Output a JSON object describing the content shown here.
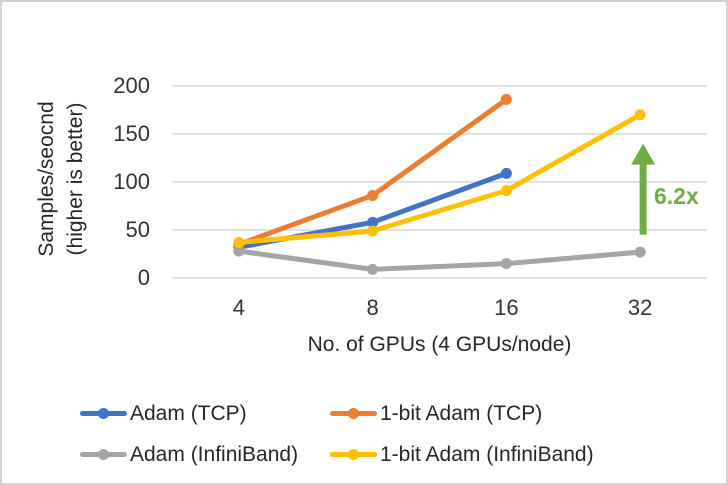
{
  "chart": {
    "y_axis": {
      "title_line1": "Samples/seocnd",
      "title_line2": "(higher is better)",
      "ticks": [
        0,
        50,
        100,
        150,
        200
      ]
    },
    "x_axis": {
      "title": "No. of GPUs (4 GPUs/node)",
      "categories": [
        "4",
        "8",
        "16",
        "32"
      ]
    },
    "annotation": {
      "label": "6.2x",
      "color": "#70AD47",
      "at_category_index": 3,
      "arrow_from_value": 45,
      "arrow_to_value": 140
    },
    "colors": {
      "gridline": "#D9D9D9",
      "text": "#262626",
      "border": "#D2D2D2"
    }
  },
  "chart_data": {
    "type": "line",
    "categories": [
      4,
      8,
      16,
      32
    ],
    "series": [
      {
        "name": "Adam (TCP)",
        "color": "#4472C4",
        "values": [
          32,
          58,
          109,
          null
        ]
      },
      {
        "name": "1-bit Adam (TCP)",
        "color": "#ED7D31",
        "values": [
          35,
          86,
          186,
          null
        ]
      },
      {
        "name": "Adam (InfiniBand)",
        "color": "#A5A5A5",
        "values": [
          28,
          9,
          15,
          27
        ]
      },
      {
        "name": "1-bit Adam (InfiniBand)",
        "color": "#FFC000",
        "values": [
          37,
          49,
          91,
          170
        ]
      }
    ],
    "title": "",
    "xlabel": "No. of GPUs (4 GPUs/node)",
    "ylabel": "Samples/seocnd (higher is better)",
    "ylim": [
      0,
      200
    ],
    "grid": true,
    "legend_position": "bottom"
  },
  "legend": {
    "items": [
      {
        "label": "Adam (TCP)",
        "color": "#4472C4"
      },
      {
        "label": "1-bit Adam (TCP)",
        "color": "#ED7D31"
      },
      {
        "label": "Adam (InfiniBand)",
        "color": "#A5A5A5"
      },
      {
        "label": "1-bit Adam (InfiniBand)",
        "color": "#FFC000"
      }
    ]
  }
}
